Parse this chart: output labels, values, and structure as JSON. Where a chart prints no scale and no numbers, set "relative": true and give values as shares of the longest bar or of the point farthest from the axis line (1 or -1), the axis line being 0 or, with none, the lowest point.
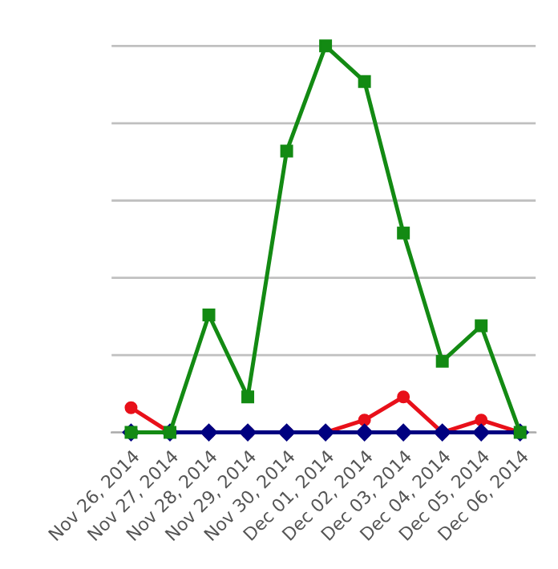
{
  "chart_data": {
    "type": "line",
    "relative": true,
    "grid": "y",
    "legend": false,
    "categories": [
      "Nov 26, 2014",
      "Nov 27, 2014",
      "Nov 28, 2014",
      "Nov 29, 2014",
      "Nov 30, 2014",
      "Dec 01, 2014",
      "Dec 02, 2014",
      "Dec 03, 2014",
      "Dec 04, 2014",
      "Dec 05, 2014",
      "Dec 06, 2014"
    ],
    "series": [
      {
        "color": "#e8101a",
        "marker": "circle",
        "values": [
          0.064,
          0,
          0,
          0,
          0,
          0,
          0.032,
          0.092,
          0,
          0.032,
          0
        ]
      },
      {
        "color": "#000080",
        "marker": "diamond",
        "values": [
          0,
          0,
          0,
          0,
          0,
          0,
          0,
          0,
          0,
          0,
          0
        ]
      },
      {
        "color": "#138a13",
        "marker": "square",
        "values": [
          0,
          0,
          0.304,
          0.092,
          0.728,
          1,
          0.908,
          0.516,
          0.184,
          0.276,
          0
        ]
      }
    ]
  }
}
